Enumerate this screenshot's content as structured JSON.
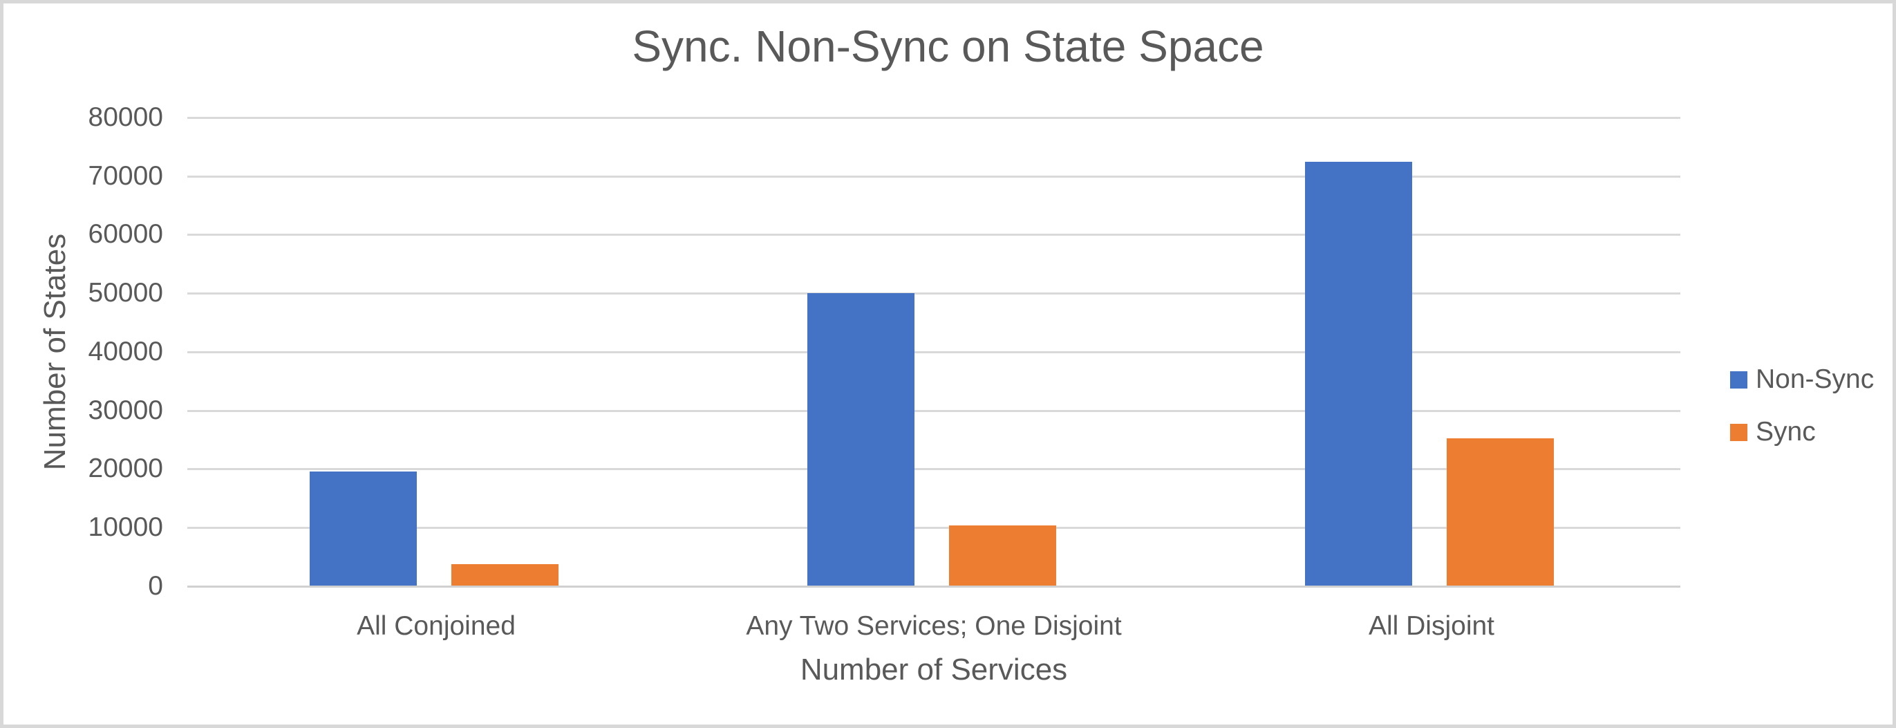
{
  "chart_data": {
    "type": "bar",
    "title": "Sync. Non-Sync on State Space",
    "xlabel": "Number of Services",
    "ylabel": "Number of States",
    "categories": [
      "All Conjoined",
      "Any Two Services; One Disjoint",
      "All Disjoint"
    ],
    "series": [
      {
        "name": "Non-Sync",
        "color": "#4472C4",
        "values": [
          19600,
          50000,
          72500
        ]
      },
      {
        "name": "Sync",
        "color": "#ED7D31",
        "values": [
          3800,
          10400,
          25300
        ]
      }
    ],
    "ylim": [
      0,
      80000
    ],
    "ytick_step": 10000,
    "yticks": [
      "0",
      "10000",
      "20000",
      "30000",
      "40000",
      "50000",
      "60000",
      "70000",
      "80000"
    ],
    "grid": true,
    "legend_position": "right"
  },
  "colors": {
    "text": "#595959",
    "gridline": "#D9D9D9",
    "axis_line": "#D0D0D0",
    "frame": "#D8D8D8",
    "background": "#FFFFFF",
    "non_sync": "#4472C4",
    "sync": "#ED7D31"
  }
}
